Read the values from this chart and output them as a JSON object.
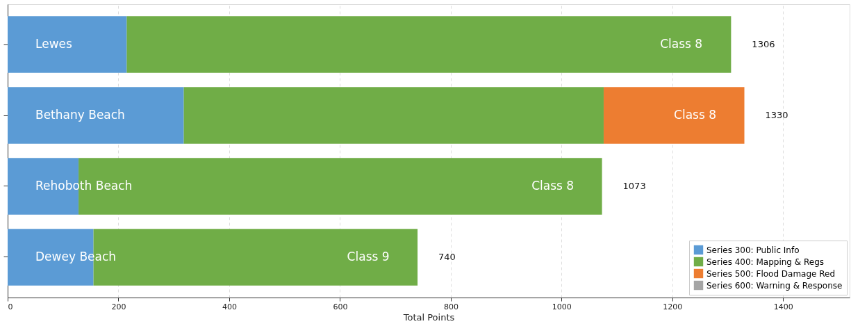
{
  "chart_data": {
    "type": "bar",
    "orientation": "horizontal",
    "stacked": true,
    "categories": [
      "Lewes",
      "Bethany Beach",
      "Rehoboth Beach",
      "Dewey Beach"
    ],
    "series": [
      {
        "name": "Series 300: Public Info",
        "color": "#5b9bd5",
        "values": [
          215,
          318,
          128,
          155
        ]
      },
      {
        "name": "Series 400: Mapping & Regs",
        "color": "#70ad47",
        "values": [
          1091,
          758,
          945,
          585
        ]
      },
      {
        "name": "Series 500: Flood Damage Red",
        "color": "#ed7d31",
        "values": [
          null,
          254,
          null,
          null
        ]
      },
      {
        "name": "Series 600: Warning & Response",
        "color": "#a5a5a5",
        "values": [
          null,
          null,
          null,
          null
        ]
      }
    ],
    "totals": [
      "1306",
      "1330",
      "1073",
      "740"
    ],
    "annotations": [
      {
        "text": "Class 8",
        "x": 1216,
        "y": "Lewes"
      },
      {
        "text": "Class 8",
        "x": 1241,
        "y": "Bethany Beach"
      },
      {
        "text": "Class 8",
        "x": 984,
        "y": "Rehoboth Beach"
      },
      {
        "text": "Class 9",
        "x": 651,
        "y": "Dewey Beach"
      }
    ],
    "xlabel": "Total Points",
    "xlim": [
      0,
      1520
    ],
    "xticks": [
      0,
      200,
      400,
      600,
      800,
      1000,
      1200,
      1400
    ],
    "grid": "x",
    "legend": "bottom right",
    "tick_labels": "x"
  }
}
